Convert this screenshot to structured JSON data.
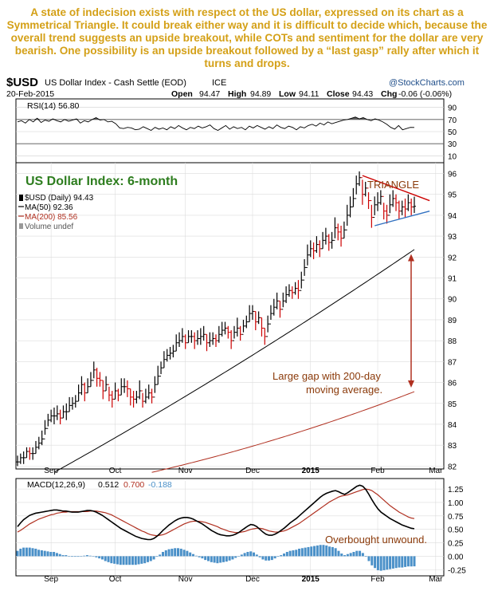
{
  "caption": "A state of indecision exists with respect ot the US dollar, expressed on its chart as a Symmetrical Triangle. It could break either way and it is difficult to decide which, because the overall trend suggests an upside breakout, while COTs and sentiment for the dollar are very bearish. One possibility is an upside breakout followed by a “last gasp” rally after which it turns and drops.",
  "header": {
    "symbol": "$USD",
    "name": "US Dollar Index - Cash Settle (EOD)",
    "exchange": "ICE",
    "source": "@StockCharts.com",
    "date": "20-Feb-2015",
    "open_label": "Open",
    "open": "94.47",
    "high_label": "High",
    "high": "94.89",
    "low_label": "Low",
    "low": "94.11",
    "close_label": "Close",
    "close": "94.43",
    "chg_label": "Chg",
    "chg": "-0.06 (-0.06%)"
  },
  "colors": {
    "caption": "#d4a017",
    "price": "#000000",
    "bar_up": "#000000",
    "bar_down": "#cc0000",
    "ma50": "#000000",
    "ma200": "#b03020",
    "triangle_upper": "#cc0000",
    "triangle_lower": "#3070c0",
    "annotation": "#8b3a0a",
    "arrow": "#b03020",
    "title_green": "#2d7d1e",
    "rsi_fill": "#606060",
    "macd_hist": "#4a90c8"
  },
  "chart_data": [
    {
      "type": "line",
      "panel": "rsi",
      "legend": "RSI(14) 56.80",
      "y_ticks": [
        10,
        30,
        50,
        70,
        90
      ],
      "ylim": [
        0,
        100
      ],
      "guide_levels": [
        30,
        70
      ],
      "values": [
        66,
        68,
        64,
        70,
        66,
        72,
        65,
        69,
        67,
        71,
        68,
        66,
        70,
        67,
        69,
        71,
        64,
        68,
        66,
        70,
        73,
        69,
        70,
        66,
        67,
        63,
        56,
        55,
        57,
        56,
        53,
        54,
        58,
        55,
        52,
        57,
        54,
        56,
        53,
        58,
        55,
        60,
        56,
        53,
        57,
        55,
        59,
        56,
        58,
        61,
        55,
        52,
        56,
        60,
        54,
        58,
        55,
        57,
        53,
        59,
        56,
        60,
        57,
        54,
        58,
        55,
        61,
        57,
        55,
        59,
        57,
        53,
        58,
        56,
        60,
        62,
        59,
        64,
        61,
        66,
        63,
        65,
        67,
        69,
        70,
        72,
        74,
        71,
        73,
        70,
        68,
        71,
        69,
        66,
        62,
        57,
        54,
        60,
        53,
        55,
        57,
        56.8
      ]
    },
    {
      "type": "line",
      "panel": "price",
      "title": "US Dollar Index: 6-month",
      "legend": [
        {
          "name": "$USD (Daily) 94.43"
        },
        {
          "name": "MA(50) 92.36"
        },
        {
          "name": "MA(200) 85.56"
        },
        {
          "name": "Volume undef"
        }
      ],
      "x_labels": [
        "Sep",
        "Oct",
        "Nov",
        "Dec",
        "2015",
        "Feb",
        "Mar"
      ],
      "x_label_index": [
        11,
        32,
        55,
        77,
        96,
        118,
        137
      ],
      "y_ticks": [
        82,
        83,
        84,
        85,
        86,
        87,
        88,
        89,
        90,
        91,
        92,
        93,
        94,
        95,
        96
      ],
      "ylim": [
        81.9,
        96.4
      ],
      "close": [
        82.2,
        82.4,
        82.4,
        82.7,
        82.6,
        82.6,
        82.9,
        83.1,
        83.3,
        83.8,
        84.2,
        84.4,
        84.4,
        84.5,
        84.3,
        84.6,
        84.6,
        84.9,
        85.0,
        85.1,
        85.5,
        85.9,
        85.5,
        85.8,
        86.1,
        86.6,
        86.2,
        86.1,
        85.6,
        85.9,
        85.4,
        85.2,
        85.6,
        85.4,
        85.8,
        85.8,
        85.7,
        85.3,
        85.2,
        85.3,
        85.6,
        85.1,
        85.3,
        85.5,
        85.3,
        85.9,
        86.3,
        86.7,
        87.1,
        87.3,
        87.4,
        87.5,
        87.9,
        88.0,
        88.2,
        87.9,
        88.2,
        88.2,
        88.0,
        88.1,
        88.2,
        88.3,
        87.9,
        88.0,
        88.1,
        88.0,
        88.3,
        88.5,
        88.6,
        88.4,
        88.0,
        88.4,
        88.6,
        88.3,
        88.7,
        88.9,
        89.3,
        89.4,
        88.9,
        89.1,
        88.6,
        88.2,
        88.8,
        89.3,
        89.6,
        89.9,
        89.5,
        89.9,
        90.2,
        90.4,
        90.3,
        90.5,
        90.4,
        90.9,
        91.5,
        92.1,
        92.4,
        92.3,
        92.6,
        92.4,
        92.8,
        93.0,
        92.7,
        92.8,
        93.4,
        93.2,
        92.9,
        93.3,
        94.0,
        94.4,
        94.8,
        95.5,
        95.8,
        95.0,
        95.3,
        94.7,
        93.9,
        94.5,
        94.6,
        94.9,
        94.2,
        94.0,
        94.5,
        94.8,
        94.6,
        94.2,
        94.4,
        94.3,
        94.6,
        94.4,
        94.43
      ],
      "high": [
        82.5,
        82.6,
        82.7,
        82.9,
        82.9,
        82.9,
        83.2,
        83.4,
        83.7,
        84.2,
        84.5,
        84.7,
        84.8,
        84.9,
        84.7,
        84.9,
        85.0,
        85.3,
        85.3,
        85.4,
        85.9,
        86.3,
        86.0,
        86.2,
        86.5,
        87.0,
        86.7,
        86.5,
        86.1,
        86.3,
        85.8,
        85.6,
        86.0,
        85.7,
        86.2,
        86.2,
        86.1,
        85.7,
        85.6,
        85.6,
        86.1,
        85.5,
        85.7,
        85.9,
        85.7,
        86.3,
        86.8,
        87.0,
        87.5,
        87.6,
        87.7,
        87.8,
        88.3,
        88.4,
        88.6,
        88.3,
        88.5,
        88.5,
        88.4,
        88.5,
        88.6,
        88.7,
        88.3,
        88.4,
        88.4,
        88.3,
        88.7,
        88.9,
        88.9,
        88.7,
        88.5,
        88.7,
        89.1,
        88.7,
        89.0,
        89.2,
        89.7,
        89.7,
        89.4,
        89.4,
        89.1,
        88.6,
        89.2,
        89.7,
        90.0,
        90.3,
        89.9,
        90.3,
        90.6,
        90.7,
        90.6,
        90.8,
        90.9,
        91.3,
        91.9,
        92.6,
        92.8,
        92.7,
        93.0,
        92.8,
        93.2,
        93.4,
        93.1,
        93.2,
        93.9,
        93.6,
        93.5,
        93.7,
        94.5,
        94.9,
        95.3,
        95.9,
        96.1,
        95.7,
        95.6,
        95.1,
        94.5,
        94.9,
        95.1,
        95.2,
        94.6,
        94.5,
        95.0,
        95.2,
        95.0,
        94.7,
        94.7,
        94.8,
        95.0,
        94.8,
        94.89
      ],
      "low": [
        82.0,
        82.1,
        82.1,
        82.4,
        82.3,
        82.3,
        82.6,
        82.8,
        83.0,
        83.5,
        83.9,
        84.1,
        84.0,
        84.2,
        84.0,
        84.3,
        84.2,
        84.6,
        84.7,
        84.8,
        85.1,
        85.4,
        85.1,
        85.5,
        85.8,
        86.2,
        85.8,
        85.8,
        85.2,
        85.6,
        85.1,
        84.8,
        85.2,
        85.1,
        85.4,
        85.5,
        85.3,
        84.9,
        84.8,
        85.0,
        85.2,
        84.8,
        85.0,
        85.2,
        85.0,
        85.5,
        85.9,
        86.4,
        86.7,
        87.0,
        87.1,
        87.2,
        87.5,
        87.7,
        87.9,
        87.6,
        87.9,
        87.9,
        87.6,
        87.8,
        87.8,
        88.0,
        87.5,
        87.7,
        87.8,
        87.7,
        87.9,
        88.2,
        88.3,
        88.1,
        87.6,
        88.1,
        88.2,
        88.0,
        88.4,
        88.6,
        88.9,
        89.0,
        88.5,
        88.8,
        88.2,
        87.8,
        88.4,
        89.0,
        89.2,
        89.5,
        89.1,
        89.6,
        89.8,
        90.1,
        90.0,
        90.2,
        90.0,
        90.5,
        91.1,
        91.6,
        92.0,
        91.9,
        92.2,
        92.0,
        92.4,
        92.6,
        92.3,
        92.4,
        92.9,
        92.8,
        92.5,
        92.9,
        93.5,
        93.9,
        94.4,
        95.0,
        95.4,
        94.5,
        94.9,
        94.3,
        93.4,
        94.0,
        94.2,
        94.5,
        93.8,
        93.6,
        94.1,
        94.4,
        94.2,
        93.8,
        94.0,
        93.9,
        94.2,
        94.0,
        94.11
      ],
      "ma50_start": 81.7,
      "ma50_end": 92.36,
      "ma200_start": 81.7,
      "ma200_end": 85.56,
      "annotations": [
        {
          "label": "TRIANGLE"
        },
        {
          "label": "Large gap with 200-day"
        },
        {
          "label": "moving average."
        }
      ],
      "triangle": {
        "upper": [
          [
            113,
            95.9
          ],
          [
            135,
            94.7
          ]
        ],
        "lower": [
          [
            117,
            93.5
          ],
          [
            135,
            94.2
          ]
        ]
      },
      "arrow_range": [
        92.3,
        85.6
      ]
    },
    {
      "type": "line",
      "panel": "macd",
      "legend_label": "MACD(12,26,9)",
      "macd": "0.512",
      "signal": "0.700",
      "histogram": "-0.188",
      "y_ticks": [
        -0.25,
        0.0,
        0.25,
        0.5,
        0.75,
        1.0,
        1.25
      ],
      "ylim": [
        -0.35,
        1.4
      ],
      "annotation": "Overbought unwound.",
      "macd_values": [
        0.55,
        0.62,
        0.68,
        0.72,
        0.76,
        0.78,
        0.8,
        0.81,
        0.82,
        0.83,
        0.84,
        0.85,
        0.86,
        0.86,
        0.85,
        0.84,
        0.84,
        0.83,
        0.82,
        0.82,
        0.82,
        0.83,
        0.84,
        0.85,
        0.85,
        0.84,
        0.82,
        0.79,
        0.76,
        0.72,
        0.68,
        0.64,
        0.6,
        0.56,
        0.52,
        0.49,
        0.46,
        0.43,
        0.4,
        0.37,
        0.35,
        0.33,
        0.32,
        0.31,
        0.31,
        0.33,
        0.37,
        0.42,
        0.48,
        0.53,
        0.58,
        0.62,
        0.66,
        0.69,
        0.71,
        0.72,
        0.72,
        0.71,
        0.69,
        0.66,
        0.63,
        0.6,
        0.56,
        0.52,
        0.48,
        0.45,
        0.42,
        0.4,
        0.39,
        0.38,
        0.38,
        0.39,
        0.41,
        0.44,
        0.48,
        0.52,
        0.56,
        0.59,
        0.58,
        0.55,
        0.5,
        0.45,
        0.41,
        0.39,
        0.39,
        0.41,
        0.44,
        0.48,
        0.52,
        0.57,
        0.62,
        0.66,
        0.7,
        0.75,
        0.8,
        0.85,
        0.9,
        0.95,
        1.0,
        1.05,
        1.1,
        1.14,
        1.17,
        1.19,
        1.21,
        1.22,
        1.2,
        1.17,
        1.15,
        1.18,
        1.22,
        1.26,
        1.3,
        1.32,
        1.3,
        1.24,
        1.15,
        1.05,
        0.96,
        0.88,
        0.82,
        0.78,
        0.74,
        0.7,
        0.67,
        0.64,
        0.61,
        0.58,
        0.56,
        0.54,
        0.52,
        0.512
      ],
      "signal_values": [
        0.45,
        0.48,
        0.52,
        0.56,
        0.6,
        0.63,
        0.66,
        0.69,
        0.71,
        0.73,
        0.75,
        0.77,
        0.78,
        0.8,
        0.81,
        0.82,
        0.82,
        0.83,
        0.83,
        0.83,
        0.83,
        0.83,
        0.83,
        0.83,
        0.84,
        0.84,
        0.84,
        0.83,
        0.82,
        0.81,
        0.79,
        0.77,
        0.74,
        0.71,
        0.68,
        0.65,
        0.62,
        0.59,
        0.56,
        0.53,
        0.5,
        0.47,
        0.45,
        0.42,
        0.4,
        0.39,
        0.38,
        0.39,
        0.4,
        0.42,
        0.45,
        0.48,
        0.51,
        0.54,
        0.57,
        0.6,
        0.62,
        0.64,
        0.65,
        0.65,
        0.65,
        0.64,
        0.63,
        0.61,
        0.59,
        0.57,
        0.55,
        0.52,
        0.5,
        0.48,
        0.46,
        0.45,
        0.44,
        0.44,
        0.45,
        0.46,
        0.48,
        0.5,
        0.51,
        0.52,
        0.52,
        0.51,
        0.49,
        0.47,
        0.46,
        0.45,
        0.45,
        0.46,
        0.47,
        0.49,
        0.52,
        0.55,
        0.58,
        0.61,
        0.65,
        0.69,
        0.73,
        0.77,
        0.81,
        0.85,
        0.89,
        0.93,
        0.97,
        1.01,
        1.04,
        1.07,
        1.1,
        1.12,
        1.13,
        1.14,
        1.16,
        1.18,
        1.2,
        1.22,
        1.24,
        1.25,
        1.24,
        1.22,
        1.18,
        1.14,
        1.09,
        1.04,
        0.99,
        0.94,
        0.9,
        0.86,
        0.82,
        0.79,
        0.76,
        0.73,
        0.71,
        0.7
      ]
    }
  ]
}
